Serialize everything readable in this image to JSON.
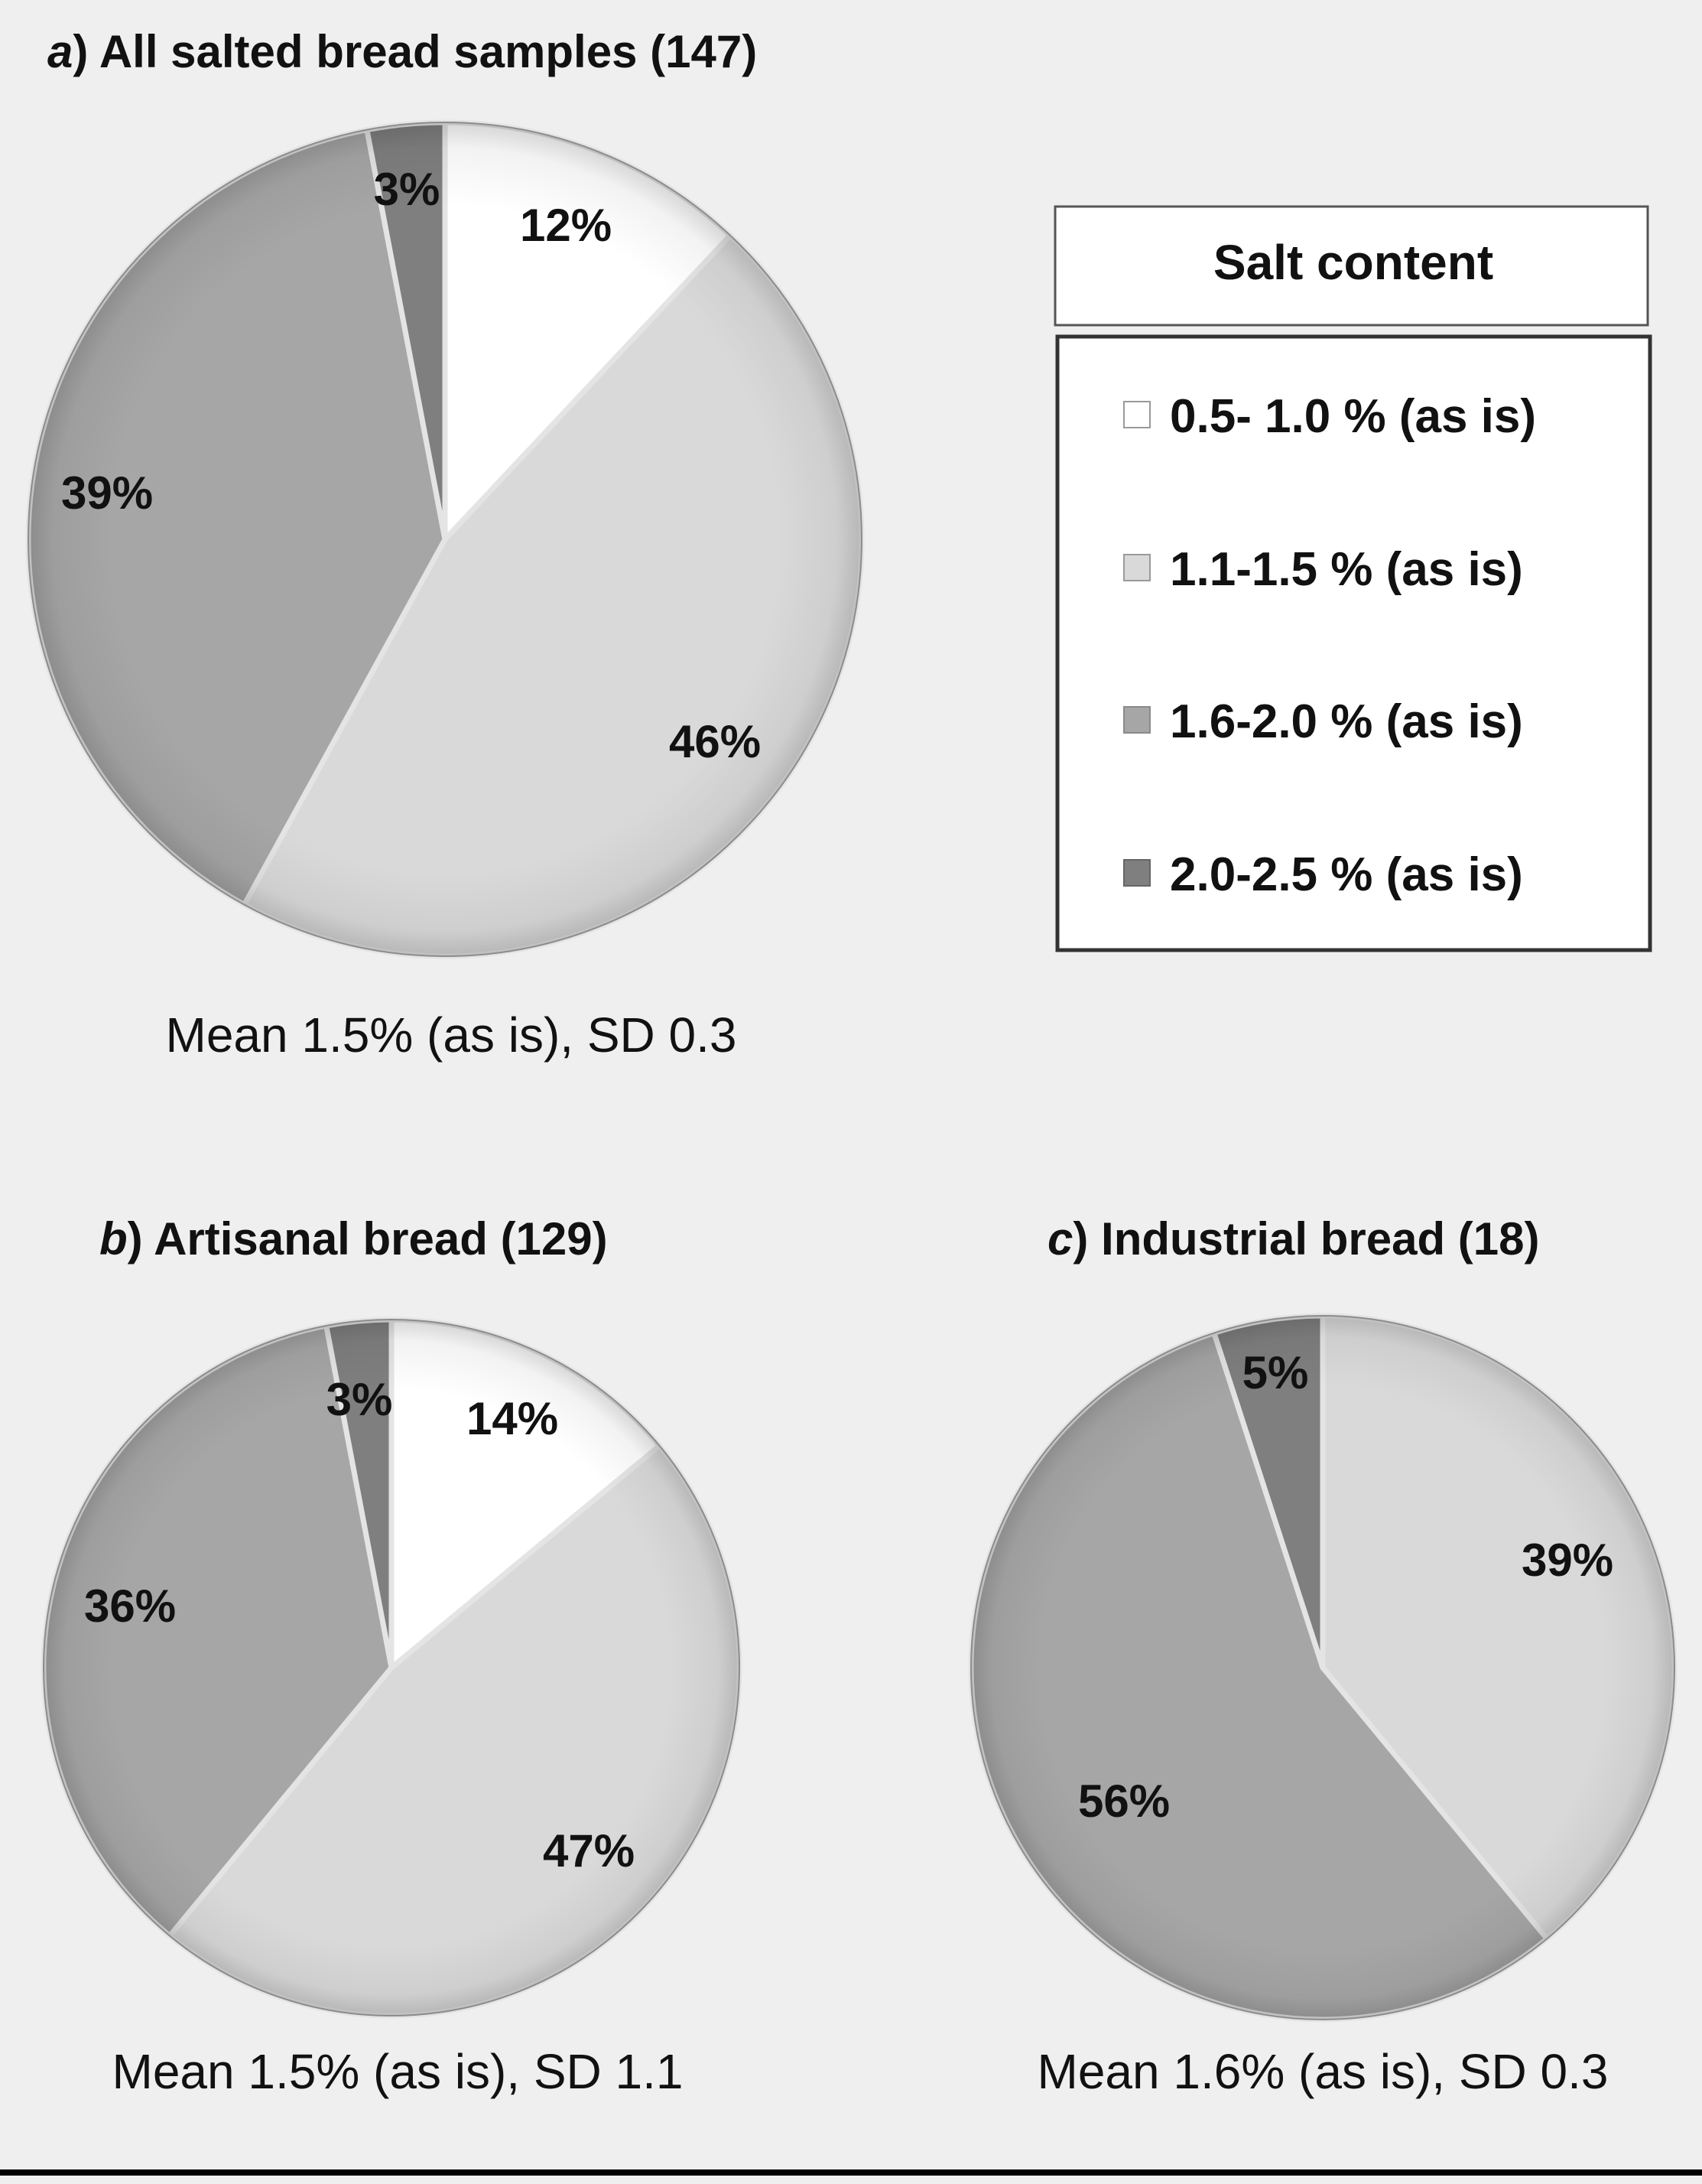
{
  "chart_data": [
    {
      "type": "pie",
      "letter": "a",
      "title": "All salted bread samples (147)",
      "categories": [
        "0.5- 1.0  % (as is)",
        "1.1-1.5 % (as is)",
        "1.6-2.0 % (as is)",
        "2.0-2.5  % (as is)"
      ],
      "values": [
        12,
        46,
        39,
        3
      ],
      "labels": [
        "12%",
        "46%",
        "39%",
        "3%"
      ],
      "caption": "Mean 1.5% (as is), SD 0.3"
    },
    {
      "type": "pie",
      "letter": "b",
      "title": "Artisanal bread (129)",
      "categories": [
        "0.5- 1.0  % (as is)",
        "1.1-1.5 % (as is)",
        "1.6-2.0 % (as is)",
        "2.0-2.5  % (as is)"
      ],
      "values": [
        14,
        47,
        36,
        3
      ],
      "labels": [
        "14%",
        "47%",
        "36%",
        "3%"
      ],
      "caption": "Mean 1.5% (as is), SD 1.1"
    },
    {
      "type": "pie",
      "letter": "c",
      "title": "Industrial bread (18)",
      "categories": [
        "1.1-1.5 % (as is)",
        "1.6-2.0 % (as is)",
        "2.0-2.5  % (as is)"
      ],
      "values": [
        39,
        56,
        5
      ],
      "labels": [
        "39%",
        "56%",
        "5%"
      ],
      "caption": "Mean 1.6% (as is), SD 0.3"
    }
  ],
  "legend": {
    "title": "Salt content",
    "items": [
      {
        "label": "0.5- 1.0  % (as is)",
        "color": "#ffffff"
      },
      {
        "label": "1.1-1.5 % (as is)",
        "color": "#d9d9d9"
      },
      {
        "label": "1.6-2.0 % (as is)",
        "color": "#a6a6a6"
      },
      {
        "label": "2.0-2.5  % (as is)",
        "color": "#7f7f7f"
      }
    ]
  },
  "colors": {
    "0.5- 1.0  % (as is)": "#ffffff",
    "1.1-1.5 % (as is)": "#d9d9d9",
    "1.6-2.0 % (as is)": "#a6a6a6",
    "2.0-2.5  % (as is)": "#7f7f7f",
    "background": "#efefef",
    "rule": "#000000"
  }
}
